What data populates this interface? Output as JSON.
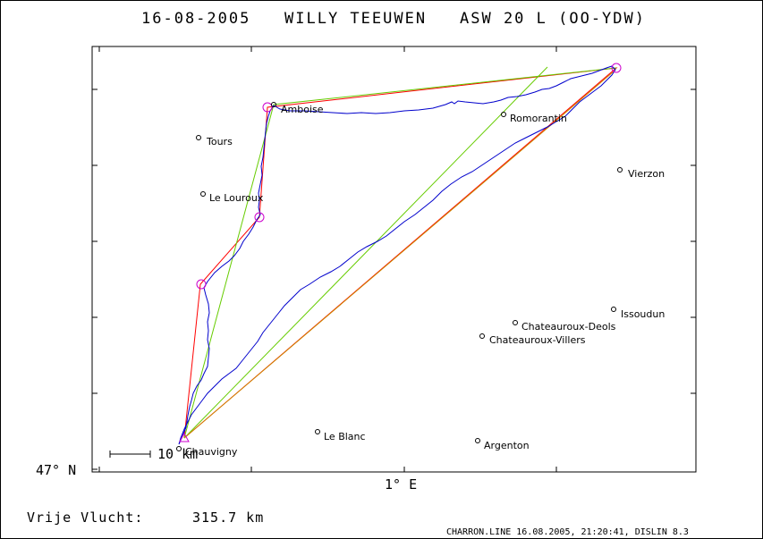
{
  "header": {
    "date": "16-08-2005",
    "pilot": "WILLY TEEUWEN",
    "aircraft": "ASW 20 L (OO-YDW)"
  },
  "axes": {
    "lat_label": "47° N",
    "lon_label": "1° E"
  },
  "scale": {
    "label": "10 km"
  },
  "towns": [
    {
      "name": "Amboise"
    },
    {
      "name": "Tours"
    },
    {
      "name": "Le Louroux"
    },
    {
      "name": "Romorantin"
    },
    {
      "name": "Vierzon"
    },
    {
      "name": "Issoudun"
    },
    {
      "name": "Chateauroux-Deols"
    },
    {
      "name": "Chateauroux-Villers"
    },
    {
      "name": "Le Blanc"
    },
    {
      "name": "Argenton"
    },
    {
      "name": "Chauvigny"
    }
  ],
  "footer": {
    "distance_label": "Vrije Vlucht:",
    "distance_value": "315.7 km",
    "credit": "CHARRON.LINE 16.08.2005, 21:20:41, DISLIN 8.3"
  },
  "colors": {
    "track": "#0000cc",
    "task_red": "#ff0000",
    "task_green": "#66cc00",
    "task_orange": "#cc8800",
    "turnpoint": "#cc00cc"
  },
  "icons": [
    "town-marker-icon",
    "turnpoint-circle-icon",
    "start-triangle-icon"
  ]
}
